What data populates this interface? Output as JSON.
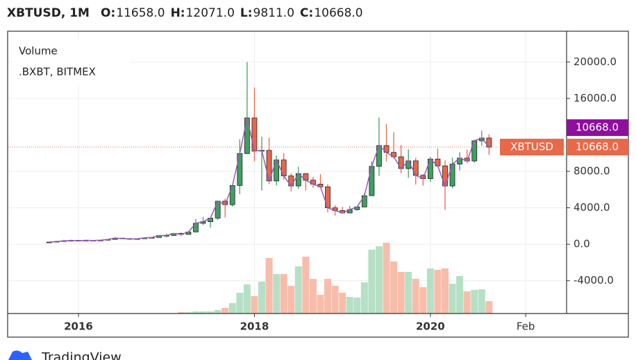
{
  "header": {
    "symbol": "XBTUSD, 1M",
    "ohlc": [
      {
        "key": "O:",
        "value": "11658.0"
      },
      {
        "key": "H:",
        "value": "12071.0"
      },
      {
        "key": "L:",
        "value": "9811.0"
      },
      {
        "key": "C:",
        "value": "10668.0"
      }
    ]
  },
  "legend": {
    "title": "Volume",
    "source": ".BXBT, BITMEX"
  },
  "price_labels": [
    {
      "label": "10668.0",
      "color": "#8e0f9e"
    },
    {
      "name": "XBTUSD",
      "label": "10668.0",
      "color": "#e8694a"
    }
  ],
  "footer": {
    "brand": "TradingView"
  },
  "chart_data": {
    "type": "candlestick",
    "x": [
      "2015-09",
      "2015-10",
      "2015-11",
      "2015-12",
      "2016-01",
      "2016-02",
      "2016-03",
      "2016-04",
      "2016-05",
      "2016-06",
      "2016-07",
      "2016-08",
      "2016-09",
      "2016-10",
      "2016-11",
      "2016-12",
      "2017-01",
      "2017-02",
      "2017-03",
      "2017-04",
      "2017-05",
      "2017-06",
      "2017-07",
      "2017-08",
      "2017-09",
      "2017-10",
      "2017-11",
      "2017-12",
      "2018-01",
      "2018-02",
      "2018-03",
      "2018-04",
      "2018-05",
      "2018-06",
      "2018-07",
      "2018-08",
      "2018-09",
      "2018-10",
      "2018-11",
      "2018-12",
      "2019-01",
      "2019-02",
      "2019-03",
      "2019-04",
      "2019-05",
      "2019-06",
      "2019-07",
      "2019-08",
      "2019-09",
      "2019-10",
      "2019-11",
      "2019-12",
      "2020-01",
      "2020-02",
      "2020-03",
      "2020-04",
      "2020-05",
      "2020-06",
      "2020-07",
      "2020-08",
      "2020-09"
    ],
    "open": [
      230,
      236,
      311,
      378,
      430,
      368,
      436,
      416,
      448,
      531,
      673,
      624,
      575,
      608,
      700,
      745,
      965,
      965,
      1190,
      1080,
      1350,
      2300,
      2480,
      2870,
      4730,
      4340,
      6450,
      9950,
      13860,
      10220,
      10300,
      6950,
      9250,
      7500,
      6400,
      7750,
      7030,
      6600,
      6300,
      4000,
      3700,
      3440,
      3800,
      4100,
      5330,
      8550,
      10830,
      10080,
      9600,
      8300,
      9150,
      7560,
      7200,
      9350,
      8600,
      6400,
      8800,
      9450,
      9140,
      11350,
      11658
    ],
    "high": [
      260,
      330,
      495,
      465,
      460,
      445,
      440,
      470,
      550,
      780,
      705,
      625,
      625,
      720,
      760,
      980,
      1150,
      1210,
      1290,
      1390,
      2770,
      3000,
      2930,
      4780,
      5010,
      6470,
      11500,
      20000,
      17200,
      11800,
      11700,
      9750,
      10000,
      7800,
      8500,
      7800,
      7400,
      7700,
      6600,
      4300,
      4100,
      4200,
      4150,
      5600,
      9100,
      13900,
      13200,
      12300,
      10900,
      10400,
      9500,
      7700,
      9600,
      10500,
      9200,
      9500,
      10100,
      10400,
      11450,
      12470,
      12071
    ],
    "low": [
      225,
      236,
      310,
      350,
      355,
      365,
      395,
      413,
      440,
      530,
      600,
      470,
      570,
      600,
      680,
      740,
      760,
      920,
      890,
      1060,
      1350,
      2100,
      1830,
      2670,
      2950,
      4130,
      5500,
      9950,
      9100,
      5900,
      6600,
      6450,
      7050,
      5800,
      6100,
      5900,
      6200,
      6200,
      3500,
      3150,
      3350,
      3400,
      3700,
      4050,
      5330,
      7500,
      9100,
      9400,
      7800,
      7300,
      6550,
      6430,
      6850,
      8450,
      3800,
      6150,
      8100,
      8900,
      8950,
      10800,
      9811
    ],
    "close": [
      236,
      311,
      378,
      430,
      368,
      436,
      416,
      448,
      531,
      673,
      624,
      575,
      608,
      700,
      745,
      965,
      965,
      1190,
      1080,
      1350,
      2300,
      2480,
      2870,
      4730,
      4340,
      6450,
      9950,
      13860,
      10220,
      10300,
      6950,
      9250,
      7500,
      6400,
      7750,
      7030,
      6600,
      6300,
      4000,
      3700,
      3440,
      3800,
      4100,
      5330,
      8550,
      10830,
      10080,
      9600,
      8300,
      9150,
      7560,
      7200,
      9350,
      8600,
      6400,
      8800,
      9450,
      9140,
      11350,
      11658,
      10668
    ],
    "volume": [
      0,
      0,
      0,
      0,
      0,
      0,
      0,
      0,
      0,
      0,
      0,
      0,
      0,
      0,
      0,
      0,
      0,
      0,
      2,
      2,
      3,
      3,
      3,
      5,
      8,
      15,
      30,
      42,
      25,
      46,
      80,
      57,
      57,
      40,
      68,
      82,
      50,
      27,
      50,
      40,
      30,
      24,
      23,
      45,
      92,
      97,
      102,
      75,
      60,
      60,
      50,
      38,
      65,
      63,
      65,
      43,
      54,
      32,
      34,
      35,
      18
    ],
    "ylim": [
      -7600,
      23300
    ],
    "yticks": [
      {
        "value": -4000,
        "label": "-4000.0"
      },
      {
        "value": 0,
        "label": "0.0"
      },
      {
        "value": 4000,
        "label": "4000.0"
      },
      {
        "value": 8000,
        "label": "8000.0"
      },
      {
        "value": 16000,
        "label": "16000.0"
      },
      {
        "value": 20000,
        "label": "20000.0"
      }
    ],
    "xticks": [
      {
        "value": "2016-01",
        "label": "2016"
      },
      {
        "value": "2018-01",
        "label": "2018"
      },
      {
        "value": "2020-01",
        "label": "2020"
      },
      {
        "value": "2021-02",
        "label": "Feb"
      }
    ],
    "grid": true,
    "colors": {
      "up": "#3fa05f",
      "down": "#e8674a",
      "volume_up": "#b5e0c5",
      "volume_down": "#f7bdaa",
      "ma": "#9b59b6",
      "last_line": "#e8674a"
    }
  }
}
